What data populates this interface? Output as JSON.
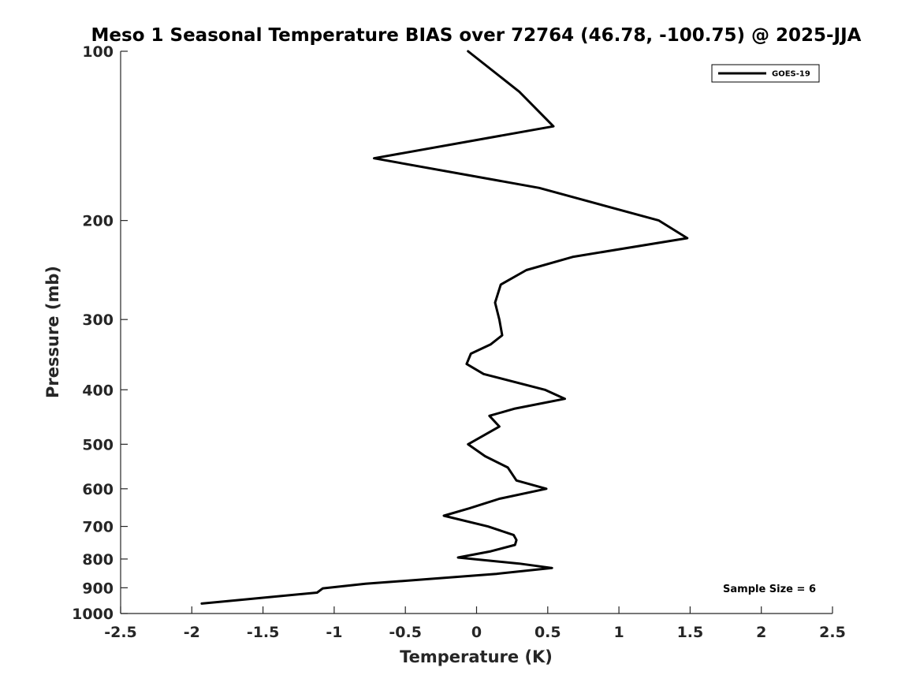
{
  "chart_data": {
    "type": "line",
    "title": "Meso 1 Seasonal Temperature BIAS over 72764 (46.78, -100.75) @ 2025-JJA",
    "xlabel": "Temperature (K)",
    "ylabel": "Pressure (mb)",
    "xlim": [
      -2.5,
      2.5
    ],
    "ylim": [
      100,
      1000
    ],
    "y_scale": "log",
    "y_reversed": true,
    "x_ticks": [
      "-2.5",
      "-2",
      "-1.5",
      "-1",
      "-0.5",
      "0",
      "0.5",
      "1",
      "1.5",
      "2",
      "2.5"
    ],
    "x_tick_values": [
      -2.5,
      -2,
      -1.5,
      -1,
      -0.5,
      0,
      0.5,
      1,
      1.5,
      2,
      2.5
    ],
    "y_ticks": [
      "100",
      "200",
      "300",
      "400",
      "500",
      "600",
      "700",
      "800",
      "900",
      "1000"
    ],
    "y_tick_values": [
      100,
      200,
      300,
      400,
      500,
      600,
      700,
      800,
      900,
      1000
    ],
    "grid": false,
    "legend": {
      "position": "top-right"
    },
    "series": [
      {
        "name": "GOES-19",
        "color": "#000000",
        "points": [
          {
            "x": -0.06,
            "y": 100
          },
          {
            "x": 0.3,
            "y": 118
          },
          {
            "x": 0.54,
            "y": 136
          },
          {
            "x": -0.72,
            "y": 155
          },
          {
            "x": 0.44,
            "y": 175
          },
          {
            "x": 1.28,
            "y": 200
          },
          {
            "x": 1.48,
            "y": 215
          },
          {
            "x": 0.68,
            "y": 232
          },
          {
            "x": 0.35,
            "y": 245
          },
          {
            "x": 0.17,
            "y": 260
          },
          {
            "x": 0.13,
            "y": 280
          },
          {
            "x": 0.16,
            "y": 300
          },
          {
            "x": 0.18,
            "y": 320
          },
          {
            "x": 0.1,
            "y": 332
          },
          {
            "x": -0.04,
            "y": 345
          },
          {
            "x": -0.07,
            "y": 360
          },
          {
            "x": 0.05,
            "y": 375
          },
          {
            "x": 0.48,
            "y": 400
          },
          {
            "x": 0.62,
            "y": 415
          },
          {
            "x": 0.27,
            "y": 432
          },
          {
            "x": 0.09,
            "y": 445
          },
          {
            "x": 0.16,
            "y": 465
          },
          {
            "x": -0.06,
            "y": 500
          },
          {
            "x": 0.06,
            "y": 525
          },
          {
            "x": 0.22,
            "y": 550
          },
          {
            "x": 0.28,
            "y": 580
          },
          {
            "x": 0.49,
            "y": 600
          },
          {
            "x": 0.16,
            "y": 625
          },
          {
            "x": -0.05,
            "y": 650
          },
          {
            "x": -0.23,
            "y": 670
          },
          {
            "x": 0.08,
            "y": 700
          },
          {
            "x": 0.26,
            "y": 725
          },
          {
            "x": 0.28,
            "y": 740
          },
          {
            "x": 0.27,
            "y": 755
          },
          {
            "x": 0.1,
            "y": 775
          },
          {
            "x": -0.13,
            "y": 795
          },
          {
            "x": 0.3,
            "y": 815
          },
          {
            "x": 0.53,
            "y": 830
          },
          {
            "x": 0.14,
            "y": 850
          },
          {
            "x": -0.38,
            "y": 870
          },
          {
            "x": -0.78,
            "y": 885
          },
          {
            "x": -1.08,
            "y": 902
          },
          {
            "x": -1.12,
            "y": 918
          },
          {
            "x": -1.93,
            "y": 960
          }
        ]
      }
    ],
    "annotations": [
      {
        "text": "Sample Size = 6",
        "position": "bottom-right"
      }
    ]
  }
}
